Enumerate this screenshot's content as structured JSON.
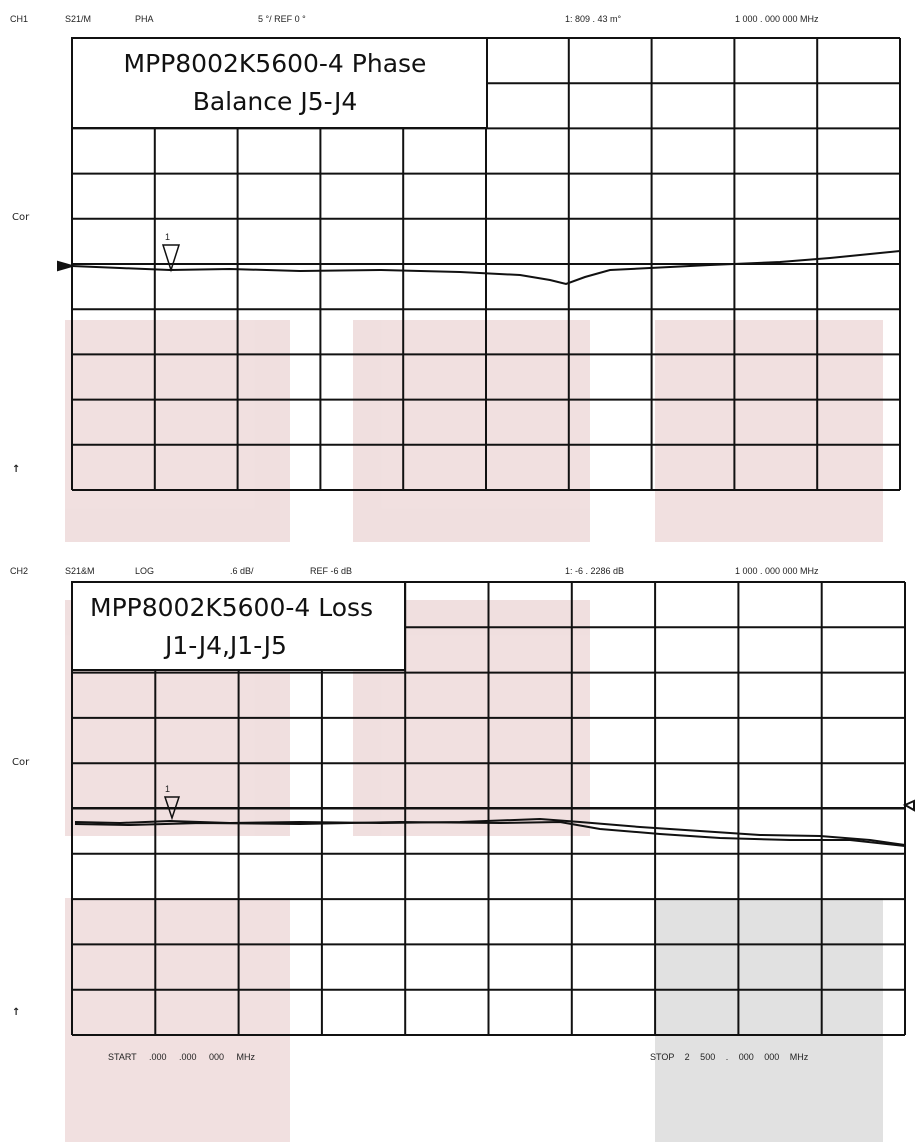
{
  "panels": [
    {
      "header": {
        "channel": "CH1",
        "parameter": "S21/M",
        "format": "PHA",
        "scale": "5 °/ REF 0 °",
        "marker_readout": "1: 809 . 43 m°",
        "marker_frequency": "1 000 . 000 000 MHz"
      },
      "side_labels": [
        "Cor",
        "↑"
      ],
      "title_lines": [
        "MPP8002K5600-4 Phase",
        "Balance J5-J4"
      ],
      "marker": "1"
    },
    {
      "header": {
        "channel": "CH2",
        "parameter": "S21&M",
        "format": "LOG",
        ".scale_placeholder": null,
        "scale": ".6 dB/",
        "reference": "REF -6 dB",
        "marker_readout": "1: -6 . 2286 dB",
        "marker_frequency": "1 000 . 000 000 MHz"
      },
      "side_labels": [
        "Cor",
        "↑"
      ],
      "title_lines": [
        "MPP8002K5600-4 Loss",
        "J1-J4,J1-J5"
      ],
      "marker": "1",
      "footer": {
        "start": "START .000 .000 000 MHz",
        "stop": "STOP 2 500 . 000 000 MHz"
      }
    }
  ]
}
